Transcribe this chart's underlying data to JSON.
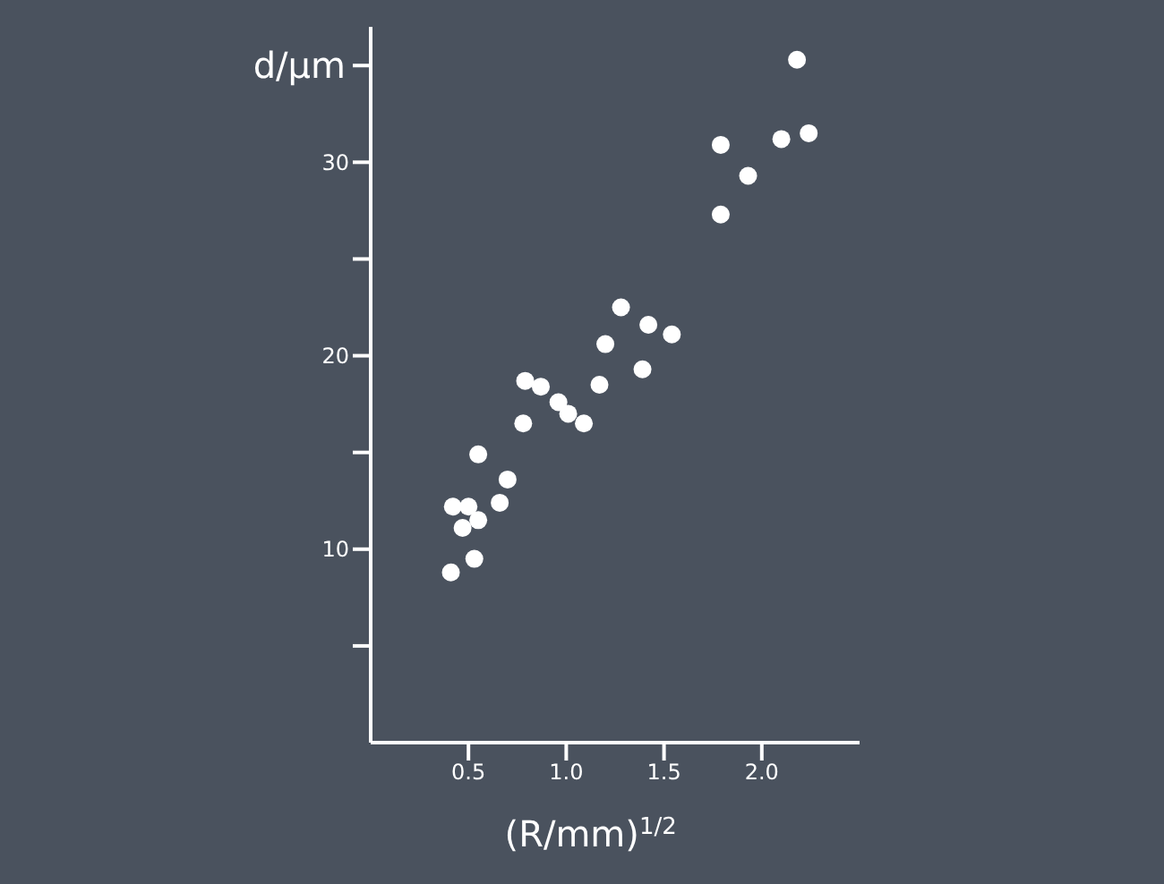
{
  "chart_data": {
    "type": "scatter",
    "xlabel": "(R/mm)$^{1/2}$",
    "ylabel": "d/μm",
    "marker": "circle",
    "grid": false,
    "legend": false,
    "xlim": [
      0,
      2.5
    ],
    "xticks": [
      0.5,
      {
        "value": 1,
        "label": "1.0"
      },
      1.5,
      {
        "value": 2,
        "label": "2.0"
      }
    ],
    "ylim": [
      0,
      37
    ],
    "yticks": [
      {
        "value": 5,
        "label": null
      },
      10,
      {
        "value": 15,
        "label": null
      },
      20,
      {
        "value": 25,
        "label": null
      },
      30,
      {
        "value": 35,
        "label": null
      }
    ],
    "series": [
      {
        "color": "#ffffff",
        "x": [
          0.41,
          0.53,
          0.47,
          0.55,
          0.42,
          0.5,
          0.66,
          0.7,
          0.55,
          0.78,
          1.09,
          1.01,
          0.96,
          0.87,
          0.79,
          1.17,
          1.39,
          1.2,
          1.54,
          1.42,
          1.28,
          1.79,
          1.93,
          1.79,
          2.1,
          2.24,
          2.18
        ],
        "values": [
          8.8,
          9.5,
          11.1,
          11.5,
          12.2,
          12.2,
          12.4,
          13.6,
          14.9,
          16.5,
          16.5,
          17,
          17.6,
          18.4,
          18.7,
          18.5,
          19.3,
          20.6,
          21.1,
          21.6,
          22.5,
          27.3,
          29.3,
          30.9,
          31.2,
          31.5,
          35.3
        ]
      }
    ]
  }
}
